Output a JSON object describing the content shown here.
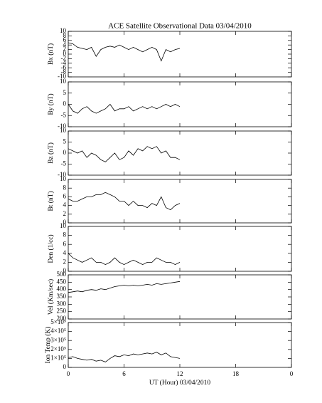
{
  "chart_data": [
    {
      "type": "line",
      "title": "ACE Satellite Observational Data   03/04/2010",
      "ylabel": "Bx (nT)",
      "x": [
        0,
        0.5,
        1,
        1.5,
        2,
        2.5,
        3,
        3.5,
        4,
        4.5,
        5,
        5.5,
        6,
        6.5,
        7,
        7.5,
        8,
        8.5,
        9,
        9.5,
        10,
        10.5,
        11,
        11.5,
        12
      ],
      "values": [
        5,
        4.5,
        3,
        2.5,
        2,
        3,
        -1,
        2,
        3,
        3.5,
        3,
        4,
        3,
        2,
        3,
        2,
        1,
        2,
        3,
        2,
        -3,
        2,
        1,
        2,
        2.5
      ],
      "ylim": [
        -10,
        10
      ],
      "yticks": [
        -10,
        -8,
        -6,
        -4,
        -2,
        0,
        2,
        4,
        6,
        8,
        10
      ]
    },
    {
      "type": "line",
      "ylabel": "By (nT)",
      "x": [
        0,
        0.5,
        1,
        1.5,
        2,
        2.5,
        3,
        3.5,
        4,
        4.5,
        5,
        5.5,
        6,
        6.5,
        7,
        7.5,
        8,
        8.5,
        9,
        9.5,
        10,
        10.5,
        11,
        11.5,
        12
      ],
      "values": [
        0,
        -3,
        -4,
        -2,
        -1,
        -3,
        -4,
        -3,
        -2,
        0,
        -3,
        -2,
        -2,
        -1,
        -3,
        -2,
        -1,
        -2,
        -1,
        -2,
        -1,
        0,
        -1,
        0,
        -1
      ],
      "ylim": [
        -10,
        10
      ],
      "yticks": [
        -10,
        -5,
        0,
        5,
        10
      ]
    },
    {
      "type": "line",
      "ylabel": "Bz (nT)",
      "x": [
        0,
        0.5,
        1,
        1.5,
        2,
        2.5,
        3,
        3.5,
        4,
        4.5,
        5,
        5.5,
        6,
        6.5,
        7,
        7.5,
        8,
        8.5,
        9,
        9.5,
        10,
        10.5,
        11,
        11.5,
        12
      ],
      "values": [
        2,
        1,
        0,
        1,
        -2,
        0,
        -1,
        -3,
        -4,
        -2,
        0,
        -3,
        -2,
        1,
        -1,
        2,
        1,
        3,
        2,
        3,
        0,
        1,
        -2,
        -2,
        -3
      ],
      "ylim": [
        -10,
        10
      ],
      "yticks": [
        -10,
        -5,
        0,
        5,
        10
      ]
    },
    {
      "type": "line",
      "ylabel": "Bt (nT)",
      "x": [
        0,
        0.5,
        1,
        1.5,
        2,
        2.5,
        3,
        3.5,
        4,
        4.5,
        5,
        5.5,
        6,
        6.5,
        7,
        7.5,
        8,
        8.5,
        9,
        9.5,
        10,
        10.5,
        11,
        11.5,
        12
      ],
      "values": [
        5.5,
        5,
        5,
        5.5,
        6,
        6,
        6.5,
        6.5,
        7,
        6.5,
        6,
        5,
        5,
        4,
        5,
        4,
        4,
        3.5,
        4.5,
        4,
        6,
        3.5,
        3,
        4,
        4.5
      ],
      "ylim": [
        0,
        10
      ],
      "yticks": [
        0,
        2,
        4,
        6,
        8,
        10
      ]
    },
    {
      "type": "line",
      "ylabel": "Den (1/cc)",
      "x": [
        0,
        0.5,
        1,
        1.5,
        2,
        2.5,
        3,
        3.5,
        4,
        4.5,
        5,
        5.5,
        6,
        6.5,
        7,
        7.5,
        8,
        8.5,
        9,
        9.5,
        10,
        10.5,
        11,
        11.5,
        12
      ],
      "values": [
        4,
        3,
        2.5,
        2,
        2.5,
        3,
        2,
        2,
        1.5,
        2,
        3,
        2,
        1.5,
        2,
        2.5,
        2,
        1.5,
        2,
        2,
        3,
        2.5,
        2,
        2,
        1.5,
        2
      ],
      "ylim": [
        0,
        10
      ],
      "yticks": [
        0,
        2,
        4,
        6,
        8,
        10
      ]
    },
    {
      "type": "line",
      "ylabel": "Vel (Km/sec)",
      "x": [
        0,
        0.5,
        1,
        1.5,
        2,
        2.5,
        3,
        3.5,
        4,
        4.5,
        5,
        5.5,
        6,
        6.5,
        7,
        7.5,
        8,
        8.5,
        9,
        9.5,
        10,
        10.5,
        11,
        11.5,
        12
      ],
      "values": [
        380,
        385,
        390,
        385,
        395,
        400,
        395,
        405,
        400,
        410,
        420,
        425,
        430,
        425,
        430,
        425,
        430,
        435,
        430,
        440,
        435,
        440,
        445,
        450,
        455
      ],
      "ylim": [
        200,
        500
      ],
      "yticks": [
        200,
        250,
        300,
        350,
        400,
        450,
        500
      ]
    },
    {
      "type": "line",
      "ylabel": "Ion Temp (K)",
      "xlabel": "UT (Hour)   03/04/2010",
      "x": [
        0,
        0.5,
        1,
        1.5,
        2,
        2.5,
        3,
        3.5,
        4,
        4.5,
        5,
        5.5,
        6,
        6.5,
        7,
        7.5,
        8,
        8.5,
        9,
        9.5,
        10,
        10.5,
        11,
        11.5,
        12
      ],
      "values": [
        110000,
        120000,
        100000,
        90000,
        80000,
        90000,
        70000,
        80000,
        60000,
        100000,
        130000,
        120000,
        140000,
        130000,
        150000,
        140000,
        150000,
        160000,
        150000,
        170000,
        140000,
        160000,
        120000,
        110000,
        100000
      ],
      "ylim": [
        0,
        500000
      ],
      "yticks": [
        0,
        {
          "value": 100000,
          "label": "1×10⁵"
        },
        {
          "value": 200000,
          "label": "2×10⁵"
        },
        {
          "value": 300000,
          "label": "3×10⁵"
        },
        {
          "value": 400000,
          "label": "4×10⁵"
        },
        {
          "value": 500000,
          "label": "5×10⁵"
        }
      ],
      "xlim": [
        0,
        24
      ],
      "xticks": [
        0,
        6,
        12,
        18,
        {
          "value": 24,
          "label": "0"
        }
      ]
    }
  ]
}
